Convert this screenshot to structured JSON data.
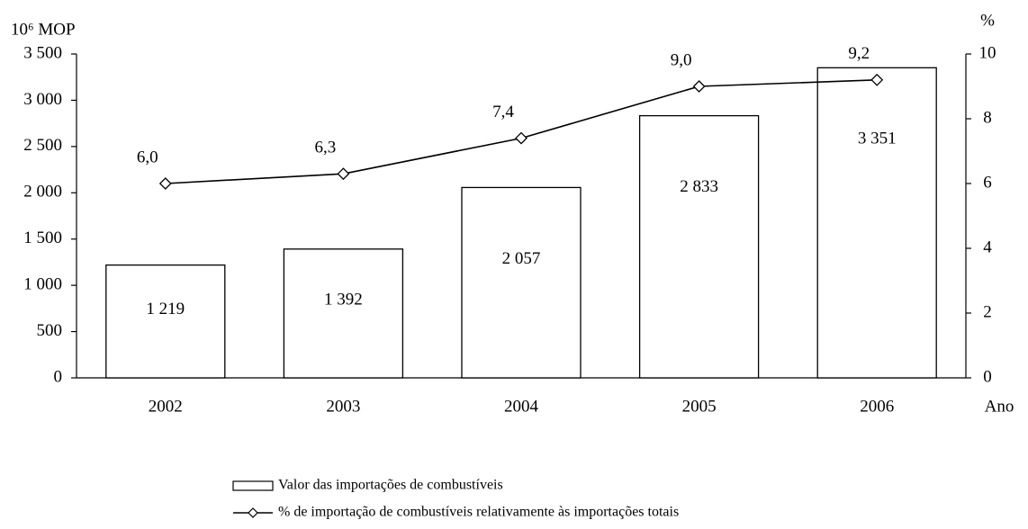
{
  "chart_data": {
    "type": "bar_line",
    "ylabel": "10⁶ MOP",
    "y2label": "%",
    "xlabel": "Ano",
    "categories": [
      "2002",
      "2003",
      "2004",
      "2005",
      "2006"
    ],
    "series": [
      {
        "name": "Valor das importações de combustíveis",
        "type": "bar",
        "color": "#ffffff",
        "values": [
          1219,
          1392,
          2057,
          2833,
          3351
        ],
        "value_labels": [
          "1 219",
          "1 392",
          "2 057",
          "2 833",
          "3 351"
        ]
      },
      {
        "name": "% de importação de combustíveis relativamente às importações totais",
        "type": "line",
        "axis": "y2",
        "color": "#000000",
        "values": [
          6.0,
          6.3,
          7.4,
          9.0,
          9.2
        ],
        "value_labels": [
          "6,0",
          "6,3",
          "7,4",
          "9,0",
          "9,2"
        ]
      }
    ],
    "ylim": [
      0,
      3500
    ],
    "yticks": [
      0,
      500,
      {
        "value": 1000,
        "label": "1 000"
      },
      {
        "value": 1500,
        "label": "1 500"
      },
      {
        "value": 2000,
        "label": "2 000"
      },
      {
        "value": 2500,
        "label": "2 500"
      },
      {
        "value": 3000,
        "label": "3 000"
      },
      {
        "value": 3500,
        "label": "3 500"
      }
    ],
    "y2lim": [
      0,
      10
    ],
    "y2ticks": [
      0,
      2,
      4,
      6,
      8,
      10
    ],
    "grid": false,
    "legend": "bottom"
  }
}
